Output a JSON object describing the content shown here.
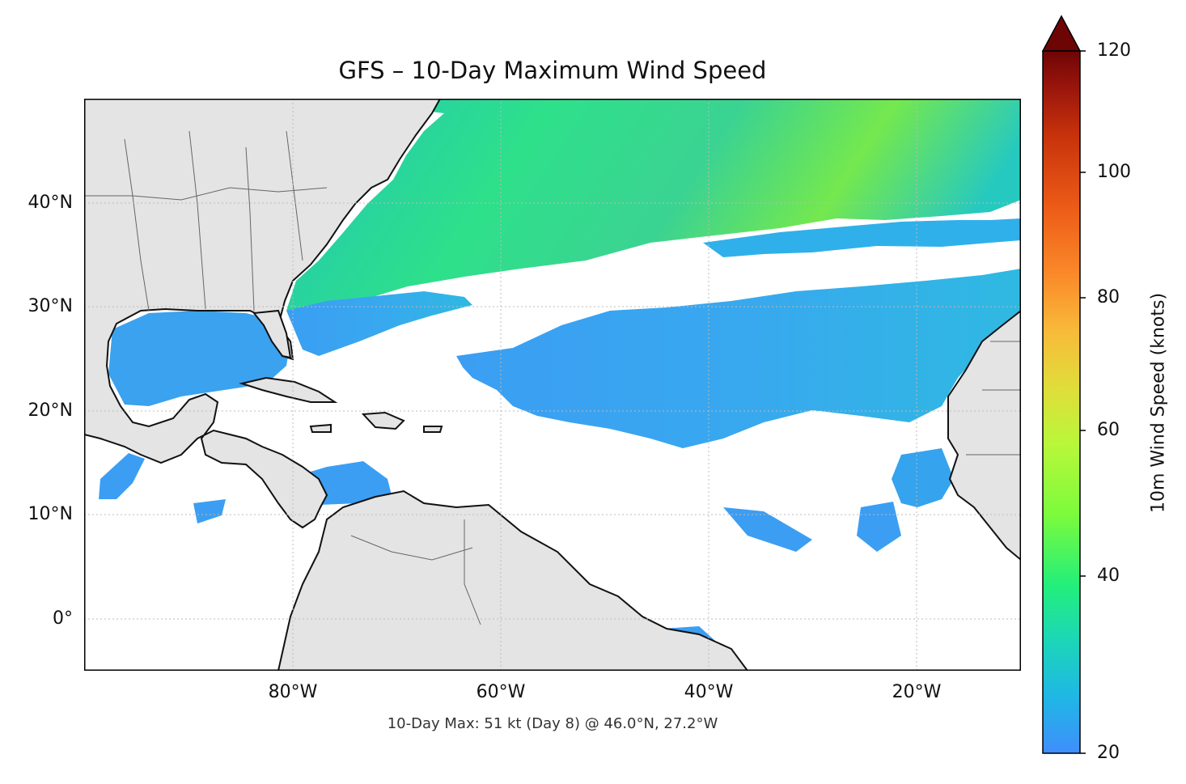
{
  "title": "GFS – 10-Day Maximum Wind Speed",
  "caption": "10-Day Max: 51 kt (Day 8) @ 46.0°N, 27.2°W",
  "x_ticks": [
    "80°W",
    "60°W",
    "40°W",
    "20°W"
  ],
  "y_ticks": [
    "40°N",
    "30°N",
    "20°N",
    "10°N",
    "0°"
  ],
  "colorbar": {
    "label": "10m Wind Speed (knots)",
    "ticks": [
      "120",
      "100",
      "80",
      "60",
      "40",
      "20"
    ],
    "min": 20,
    "max": 120,
    "extend": "max",
    "colors": [
      "#3f8efc",
      "#1fb7e5",
      "#1cd6b8",
      "#23ef7a",
      "#7cfb3c",
      "#b9f73a",
      "#e0dd3a",
      "#f7bb39",
      "#fb8a2a",
      "#ec5a17",
      "#c7320b",
      "#98150c",
      "#6e0505"
    ]
  },
  "map": {
    "extent": {
      "lon": [
        -100,
        -10
      ],
      "lat": [
        -5,
        50
      ]
    },
    "land_color": "#e4e4e4",
    "ocean_color": "#ffffff",
    "wind_low_color": "#3f9cf5",
    "wind_mid_color": "#1ed3a4",
    "wind_high_color": "#6af05a"
  }
}
